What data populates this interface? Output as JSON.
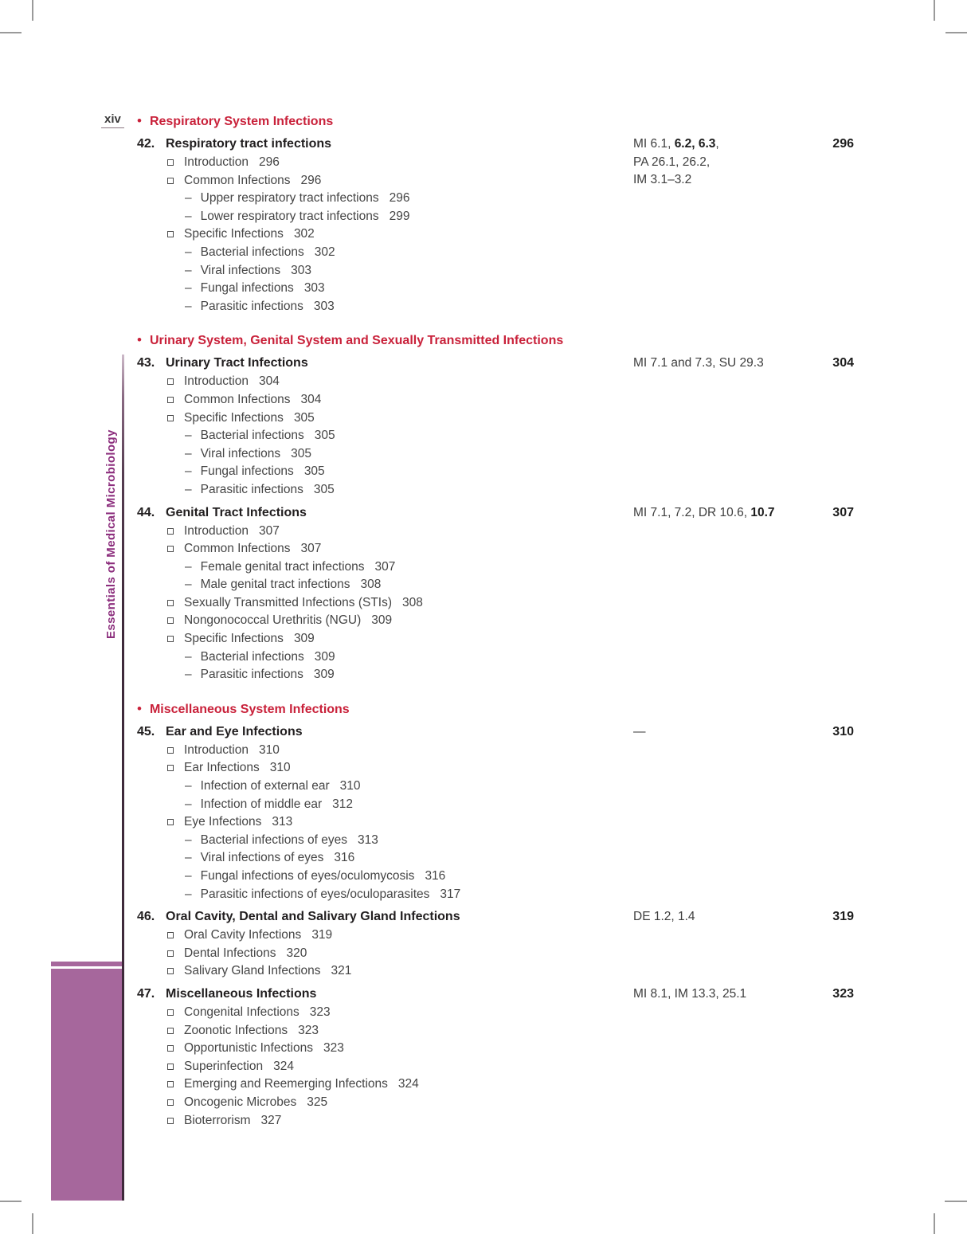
{
  "page_label": "xiv",
  "sidebar": {
    "title": "Essentials of Medical Microbiology"
  },
  "colors": {
    "heading_red": "#c9213a",
    "sidebar_block_purple": "#a6679c",
    "sidebar_text_purple": "#8c2e7d",
    "body_text": "#454545"
  },
  "sections": [
    {
      "heading": "Respiratory System Infections",
      "chapters": [
        {
          "number": "42.",
          "title": "Respiratory tract infections",
          "code_lines": [
            [
              {
                "t": "MI 6.1, "
              },
              {
                "t": "6.2, 6.3",
                "b": true
              },
              {
                "t": ","
              }
            ],
            [
              {
                "t": "PA 26.1, 26.2,"
              }
            ],
            [
              {
                "t": "IM 3.1–3.2"
              }
            ]
          ],
          "page": "296",
          "entries": [
            {
              "level": 1,
              "text": "Introduction",
              "page": "296"
            },
            {
              "level": 1,
              "text": "Common Infections",
              "page": "296"
            },
            {
              "level": 2,
              "text": "Upper respiratory tract infections",
              "page": "296"
            },
            {
              "level": 2,
              "text": "Lower respiratory tract infections",
              "page": "299"
            },
            {
              "level": 1,
              "text": "Specific Infections",
              "page": "302"
            },
            {
              "level": 2,
              "text": "Bacterial infections",
              "page": "302"
            },
            {
              "level": 2,
              "text": "Viral infections",
              "page": "303"
            },
            {
              "level": 2,
              "text": "Fungal infections",
              "page": "303"
            },
            {
              "level": 2,
              "text": "Parasitic infections",
              "page": "303"
            }
          ]
        }
      ]
    },
    {
      "heading": "Urinary System, Genital System and Sexually Transmitted Infections",
      "chapters": [
        {
          "number": "43.",
          "title": "Urinary Tract Infections",
          "code_lines": [
            [
              {
                "t": "MI 7.1 and 7.3, SU 29.3"
              }
            ]
          ],
          "page": "304",
          "entries": [
            {
              "level": 1,
              "text": "Introduction",
              "page": "304"
            },
            {
              "level": 1,
              "text": "Common Infections",
              "page": "304"
            },
            {
              "level": 1,
              "text": "Specific Infections",
              "page": "305"
            },
            {
              "level": 2,
              "text": "Bacterial infections",
              "page": "305"
            },
            {
              "level": 2,
              "text": "Viral infections",
              "page": "305"
            },
            {
              "level": 2,
              "text": "Fungal infections",
              "page": "305"
            },
            {
              "level": 2,
              "text": "Parasitic infections",
              "page": "305"
            }
          ]
        },
        {
          "number": "44.",
          "title": "Genital Tract Infections",
          "code_lines": [
            [
              {
                "t": "MI 7.1, 7.2, DR 10.6, "
              },
              {
                "t": "10.7",
                "b": true
              }
            ]
          ],
          "page": "307",
          "entries": [
            {
              "level": 1,
              "text": "Introduction",
              "page": "307"
            },
            {
              "level": 1,
              "text": "Common Infections",
              "page": "307"
            },
            {
              "level": 2,
              "text": "Female genital tract infections",
              "page": "307"
            },
            {
              "level": 2,
              "text": "Male genital tract infections",
              "page": "308"
            },
            {
              "level": 1,
              "text": "Sexually Transmitted Infections (STIs)",
              "page": "308"
            },
            {
              "level": 1,
              "text": "Nongonococcal Urethritis (NGU)",
              "page": "309"
            },
            {
              "level": 1,
              "text": "Specific Infections",
              "page": "309"
            },
            {
              "level": 2,
              "text": "Bacterial infections",
              "page": "309"
            },
            {
              "level": 2,
              "text": "Parasitic infections",
              "page": "309"
            }
          ]
        }
      ]
    },
    {
      "heading": "Miscellaneous System Infections",
      "chapters": [
        {
          "number": "45.",
          "title": "Ear and Eye Infections",
          "code_lines": [
            [
              {
                "t": "—"
              }
            ]
          ],
          "page": "310",
          "entries": [
            {
              "level": 1,
              "text": "Introduction",
              "page": "310"
            },
            {
              "level": 1,
              "text": "Ear Infections",
              "page": "310"
            },
            {
              "level": 2,
              "text": "Infection of external ear",
              "page": "310"
            },
            {
              "level": 2,
              "text": "Infection of middle ear",
              "page": "312"
            },
            {
              "level": 1,
              "text": "Eye Infections",
              "page": "313"
            },
            {
              "level": 2,
              "text": "Bacterial infections of eyes",
              "page": "313"
            },
            {
              "level": 2,
              "text": "Viral infections of eyes",
              "page": "316"
            },
            {
              "level": 2,
              "text": "Fungal infections of eyes/oculomycosis",
              "page": "316"
            },
            {
              "level": 2,
              "text": "Parasitic infections of eyes/oculoparasites",
              "page": "317"
            }
          ]
        },
        {
          "number": "46.",
          "title": "Oral Cavity, Dental and Salivary Gland Infections",
          "code_lines": [
            [
              {
                "t": "DE 1.2, 1.4"
              }
            ]
          ],
          "page": "319",
          "entries": [
            {
              "level": 1,
              "text": "Oral Cavity Infections",
              "page": "319"
            },
            {
              "level": 1,
              "text": "Dental Infections",
              "page": "320"
            },
            {
              "level": 1,
              "text": "Salivary Gland Infections",
              "page": "321"
            }
          ]
        },
        {
          "number": "47.",
          "title": "Miscellaneous Infections",
          "code_lines": [
            [
              {
                "t": "MI 8.1, IM 13.3, 25.1"
              }
            ]
          ],
          "page": "323",
          "entries": [
            {
              "level": 1,
              "text": "Congenital Infections",
              "page": "323"
            },
            {
              "level": 1,
              "text": "Zoonotic Infections",
              "page": "323"
            },
            {
              "level": 1,
              "text": "Opportunistic Infections",
              "page": "323"
            },
            {
              "level": 1,
              "text": "Superinfection",
              "page": "324"
            },
            {
              "level": 1,
              "text": "Emerging and Reemerging Infections",
              "page": "324"
            },
            {
              "level": 1,
              "text": "Oncogenic Microbes",
              "page": "325"
            },
            {
              "level": 1,
              "text": "Bioterrorism",
              "page": "327"
            }
          ]
        }
      ]
    }
  ]
}
